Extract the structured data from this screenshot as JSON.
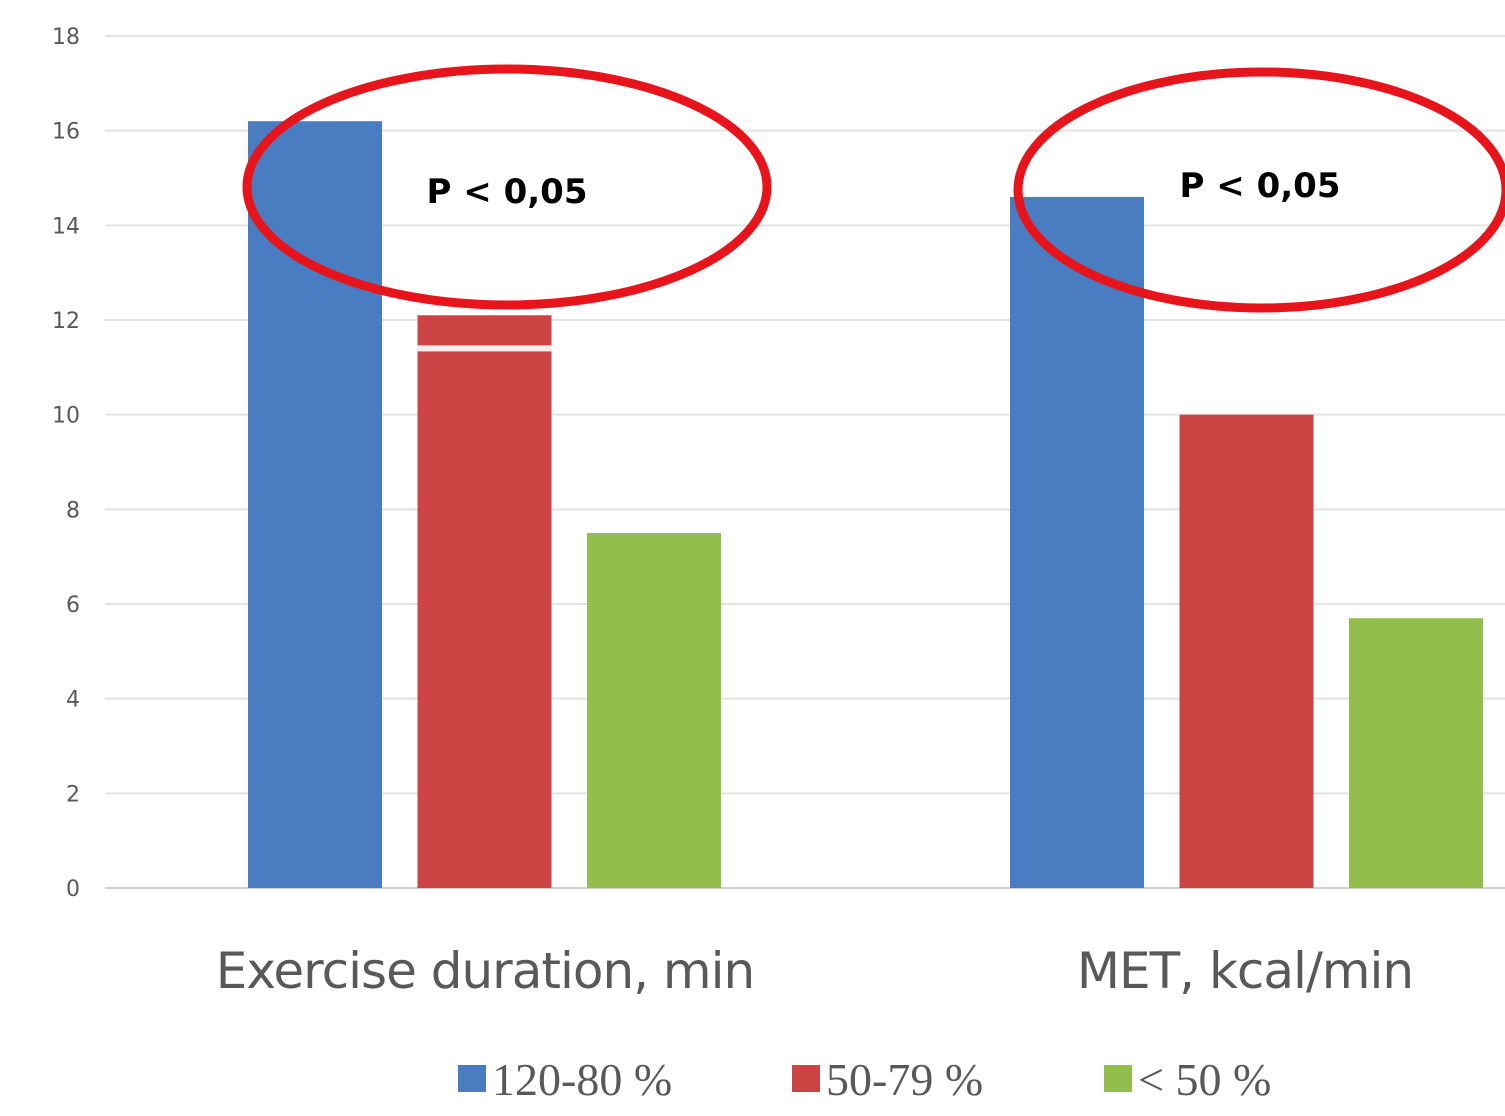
{
  "chart_data": {
    "type": "bar",
    "categories": [
      "Exercise duration, min",
      "MET, kcal/min"
    ],
    "series": [
      {
        "name": "120-80 %",
        "values": [
          16.2,
          14.6
        ],
        "color": "#4a7cc1"
      },
      {
        "name": "50-79 %",
        "values": [
          12.1,
          10.0
        ],
        "color": "#cc4444"
      },
      {
        "name": "< 50 %",
        "values": [
          7.5,
          5.7
        ],
        "color": "#92bf4b"
      }
    ],
    "yticks": [
      "0",
      "2",
      "4",
      "6",
      "8",
      "10",
      "12",
      "14",
      "16",
      "18"
    ],
    "ylim": [
      0,
      18
    ],
    "grid": true,
    "legend": "bottom",
    "annotations": [
      {
        "text": "P < 0,05",
        "category": "Exercise duration, min",
        "shape": "ellipse",
        "color": "#e8141b"
      },
      {
        "text": "P < 0,05",
        "category": "MET, kcal/min",
        "shape": "ellipse",
        "color": "#e8141b"
      }
    ],
    "xlabel": "",
    "ylabel": "",
    "title": ""
  }
}
